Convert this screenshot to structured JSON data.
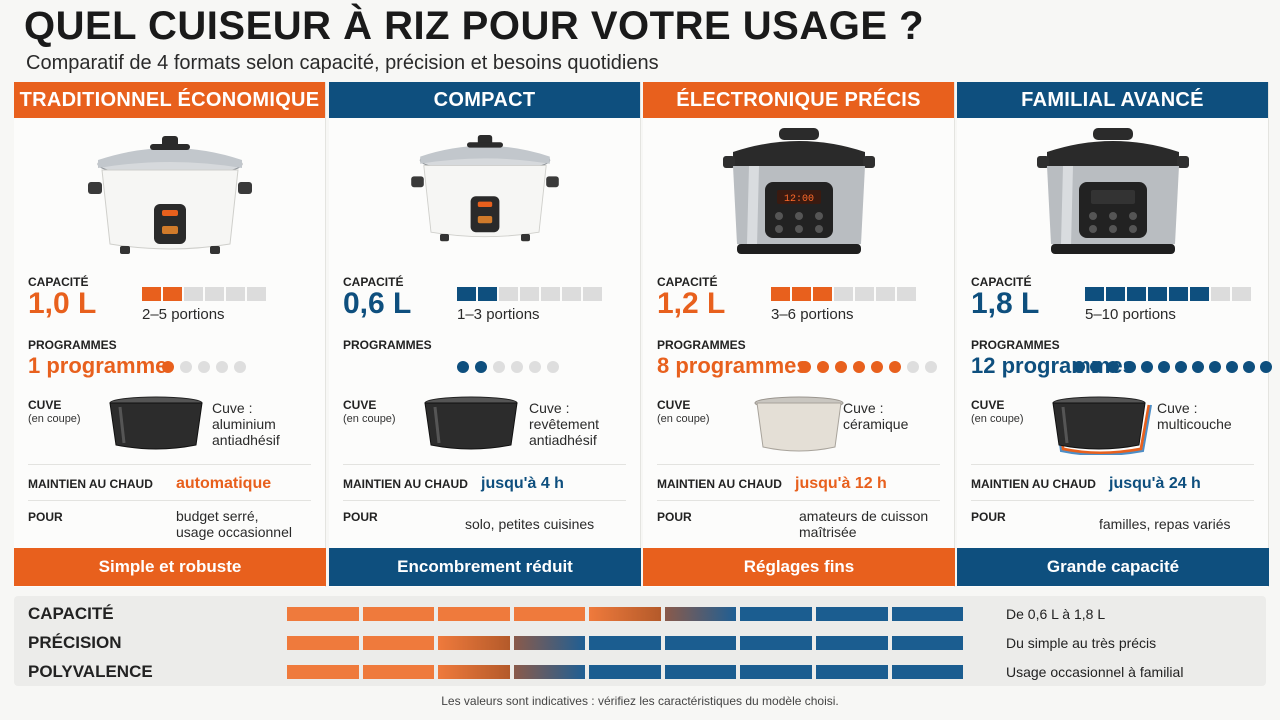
{
  "header": {
    "title": "QUEL CUISEUR À RIZ POUR VOTRE USAGE ?",
    "subtitle": "Comparatif de 4 formats selon capacité, précision et besoins quotidiens"
  },
  "labels": {
    "capacity": "CAPACITÉ",
    "programs": "PROGRAMMES",
    "bowl": "CUVE",
    "bowl_sub": "(en coupe)",
    "keep_warm": "MAINTIEN AU CHAUD",
    "for": "POUR"
  },
  "colors": {
    "orange": "#e8601d",
    "blue": "#0e4f7e"
  },
  "columns": [
    {
      "title": "TRADITIONNEL ÉCONOMIQUE",
      "theme": "orange",
      "cooker_icon": "white-rice-cooker-icon",
      "capacity": "1,0 L",
      "capacity_level": 2,
      "capacity_max": 6,
      "portions": "2–5 portions",
      "programs": "1 programme",
      "program_level": 1,
      "program_max": 5,
      "bowl_icon": "dark-bowl-icon",
      "bowl_text": "Cuve :\naluminium\nantiadhésif",
      "keep_warm": "automatique",
      "for": "budget serré,\nusage occasionnel",
      "footer": "Simple et robuste"
    },
    {
      "title": "COMPACT",
      "theme": "blue",
      "cooker_icon": "small-white-rice-cooker-icon",
      "capacity": "0,6 L",
      "capacity_level": 2,
      "capacity_max": 7,
      "portions": "1–3 portions",
      "programs": "",
      "program_level": 2,
      "program_max": 6,
      "bowl_icon": "dark-bowl-icon",
      "bowl_text": "Cuve :\nrevêtement\nantiadhésif",
      "keep_warm": "jusqu'à 4 h",
      "for": "solo, petites cuisines",
      "footer": "Encombrement réduit"
    },
    {
      "title": "ÉLECTRONIQUE PRÉCIS",
      "theme": "orange",
      "cooker_icon": "digital-rice-cooker-icon",
      "capacity": "1,2 L",
      "capacity_level": 3,
      "capacity_max": 7,
      "portions": "3–6 portions",
      "programs": "8 programmes",
      "program_level": 6,
      "program_max": 8,
      "bowl_icon": "ceramic-bowl-icon",
      "bowl_text": "Cuve :\ncéramique",
      "keep_warm": "jusqu'à 12 h",
      "for": "amateurs de cuisson\nmaîtrisée",
      "footer": "Réglages fins"
    },
    {
      "title": "FAMILIAL AVANCÉ",
      "theme": "blue",
      "cooker_icon": "premium-rice-cooker-icon",
      "capacity": "1,8 L",
      "capacity_level": 6,
      "capacity_max": 8,
      "portions": "5–10 portions",
      "programs": "12 programmes",
      "program_level": 12,
      "program_max": 12,
      "bowl_icon": "multilayer-bowl-icon",
      "bowl_text": "Cuve :\nmulticouche",
      "keep_warm": "jusqu'à 24 h",
      "for": "familles, repas variés",
      "footer": "Grande capacité"
    }
  ],
  "scale": [
    {
      "label": "CAPACITÉ",
      "description": "De 0,6 L à 1,8 L",
      "orange_segments": 5
    },
    {
      "label": "PRÉCISION",
      "description": "Du simple au très précis",
      "orange_segments": 3
    },
    {
      "label": "POLYVALENCE",
      "description": "Usage occasionnel à familial",
      "orange_segments": 3
    }
  ],
  "note": "Les valeurs sont indicatives : vérifiez les caractéristiques du modèle choisi."
}
